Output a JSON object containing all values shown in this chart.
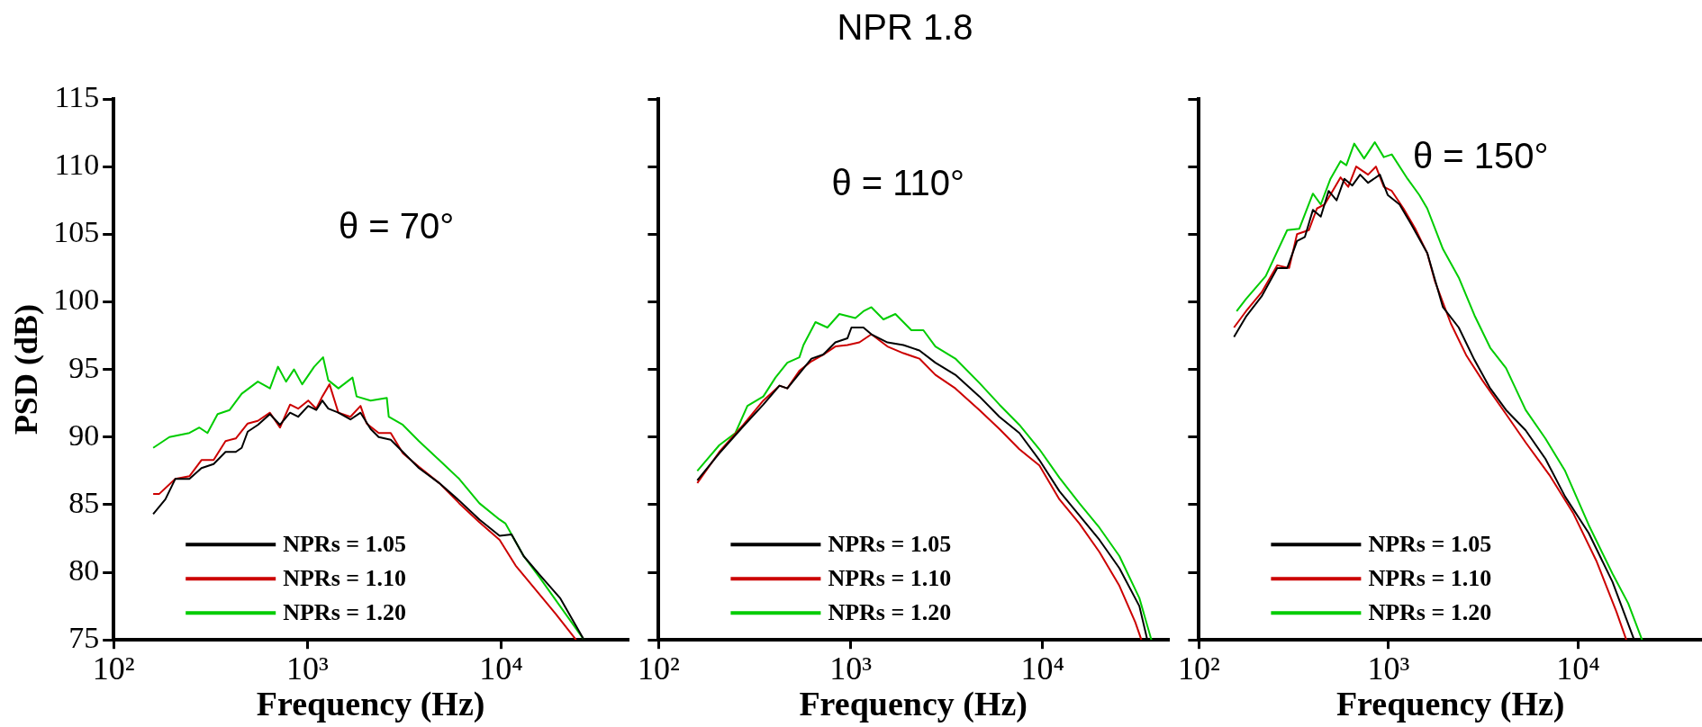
{
  "chart_data": [
    {
      "type": "line",
      "xlabel": "Frequency (Hz)",
      "ylabel": "PSD (dB)",
      "log": "x",
      "marker": "none",
      "legend": "bottom left",
      "grid": false,
      "annotations": [
        "θ = 70°"
      ],
      "xlim": [
        100,
        45000
      ],
      "xticks": [
        {
          "value": 100,
          "label": "10²"
        },
        {
          "value": 1000,
          "label": "10³"
        },
        {
          "value": 10000,
          "label": "10⁴"
        }
      ],
      "ylim": [
        75,
        115
      ],
      "yticks": [
        75,
        80,
        85,
        90,
        95,
        100,
        105,
        110,
        115
      ],
      "series": [
        {
          "name": "NPRs = 1.05",
          "color": "#000000",
          "x": [
            160,
            185,
            208,
            246,
            284,
            328,
            378,
            427,
            458,
            492,
            555,
            641,
            722,
            814,
            896,
            1010,
            1111,
            1194,
            1282,
            1446,
            1668,
            1881,
            2120,
            2333,
            2693,
            3110,
            3765,
            4790,
            6080,
            7730,
            9820,
            11320,
            13070,
            15850,
            20140,
            26800
          ],
          "values": [
            84.3,
            85.4,
            86.9,
            86.9,
            87.7,
            88.0,
            88.9,
            88.9,
            89.2,
            90.4,
            90.9,
            91.7,
            90.9,
            91.8,
            91.5,
            92.3,
            92.0,
            92.7,
            92.1,
            91.8,
            91.3,
            91.8,
            90.6,
            90.0,
            89.8,
            88.9,
            87.7,
            86.6,
            85.3,
            83.9,
            82.7,
            82.8,
            81.2,
            79.8,
            78.1,
            75.0
          ]
        },
        {
          "name": "NPRs = 1.10",
          "color": "#cc0000",
          "x": [
            160,
            172,
            208,
            246,
            284,
            328,
            378,
            427,
            492,
            555,
            641,
            722,
            814,
            896,
            1010,
            1111,
            1194,
            1301,
            1446,
            1668,
            1881,
            2022,
            2333,
            2693,
            3110,
            3765,
            4790,
            6080,
            7730,
            9820,
            11880,
            15100,
            19190,
            24380
          ],
          "values": [
            85.8,
            85.8,
            86.9,
            87.1,
            88.3,
            88.3,
            89.7,
            89.9,
            91.0,
            91.2,
            91.8,
            90.7,
            92.4,
            92.1,
            92.7,
            92.1,
            93.0,
            93.9,
            91.8,
            91.5,
            92.3,
            91.0,
            90.3,
            90.3,
            88.8,
            87.8,
            86.6,
            85.1,
            83.7,
            82.4,
            80.5,
            78.7,
            76.9,
            75.0
          ]
        },
        {
          "name": "NPRs = 1.20",
          "color": "#00cc00",
          "x": [
            160,
            194,
            246,
            277,
            305,
            344,
            397,
            458,
            555,
            641,
            705,
            776,
            853,
            940,
            1084,
            1205,
            1282,
            1446,
            1710,
            1795,
            2120,
            2570,
            2630,
            3110,
            3765,
            4790,
            6080,
            7730,
            9820,
            10540,
            13070,
            15850,
            20140,
            26800
          ],
          "values": [
            89.2,
            90.0,
            90.3,
            90.7,
            90.3,
            91.7,
            92.0,
            93.2,
            94.1,
            93.6,
            95.2,
            94.1,
            95.0,
            93.9,
            95.2,
            95.9,
            94.2,
            93.6,
            94.4,
            93.0,
            92.7,
            92.9,
            91.5,
            90.9,
            89.7,
            88.3,
            86.9,
            85.1,
            83.9,
            83.6,
            81.2,
            79.6,
            77.5,
            75.0
          ]
        }
      ]
    },
    {
      "type": "line",
      "title": "NPR 1.8",
      "xlabel": "Frequency (Hz)",
      "log": "x",
      "marker": "none",
      "legend": "bottom left",
      "grid": false,
      "tick_labels": "x",
      "annotations": [
        "θ = 110°"
      ],
      "xlim": [
        100,
        45000
      ],
      "xticks": [
        {
          "value": 100,
          "label": "10²"
        },
        {
          "value": 1000,
          "label": "10³"
        },
        {
          "value": 10000,
          "label": "10⁴"
        }
      ],
      "ylim": [
        75,
        115
      ],
      "yticks": [
        75,
        80,
        85,
        90,
        95,
        100,
        105,
        110,
        115
      ],
      "series": [
        {
          "name": "NPRs = 1.05",
          "color": "#000000",
          "x": [
            159,
            207,
            276,
            351,
            426,
            468,
            541,
            625,
            721,
            833,
            962,
            1010,
            1166,
            1283,
            1555,
            1884,
            2282,
            2765,
            3513,
            4688,
            5957,
            7568,
            9622,
            12230,
            15550,
            19770,
            25120,
            31920,
            35130
          ],
          "values": [
            86.8,
            88.8,
            90.8,
            92.4,
            93.8,
            93.6,
            94.7,
            95.8,
            96.1,
            97.0,
            97.3,
            98.1,
            98.1,
            97.6,
            97.0,
            96.8,
            96.4,
            95.5,
            94.6,
            93.0,
            91.5,
            90.3,
            88.3,
            86.0,
            84.2,
            82.4,
            80.3,
            77.5,
            75.0
          ]
        },
        {
          "name": "NPRs = 1.10",
          "color": "#cc0000",
          "x": [
            159,
            207,
            276,
            351,
            426,
            468,
            541,
            625,
            721,
            833,
            962,
            1111,
            1283,
            1555,
            1884,
            2282,
            2765,
            3513,
            4688,
            5957,
            7568,
            9622,
            12230,
            15550,
            19770,
            25120,
            30410,
            32710
          ],
          "values": [
            86.6,
            88.9,
            90.9,
            92.7,
            93.8,
            93.6,
            94.9,
            95.6,
            96.1,
            96.7,
            96.8,
            97.0,
            97.6,
            96.7,
            96.2,
            95.8,
            94.6,
            93.6,
            92.0,
            90.6,
            89.1,
            87.9,
            85.4,
            83.6,
            81.5,
            79.0,
            76.3,
            75.0
          ]
        },
        {
          "name": "NPRs = 1.20",
          "color": "#00cc00",
          "x": [
            159,
            207,
            251,
            290,
            351,
            406,
            468,
            541,
            568,
            656,
            757,
            874,
            1059,
            1166,
            1283,
            1482,
            1711,
            2073,
            2394,
            2765,
            3513,
            4688,
            5957,
            7568,
            9622,
            12230,
            15550,
            19770,
            25120,
            31920,
            36890
          ],
          "values": [
            87.5,
            89.4,
            90.3,
            92.3,
            93.0,
            94.4,
            95.5,
            95.9,
            96.8,
            98.5,
            98.1,
            99.1,
            98.8,
            99.3,
            99.6,
            98.7,
            99.1,
            97.9,
            97.9,
            96.7,
            95.8,
            94.0,
            92.4,
            90.9,
            89.1,
            87.0,
            85.1,
            83.3,
            81.2,
            78.1,
            75.0
          ]
        }
      ]
    },
    {
      "type": "line",
      "xlabel": "Frequency (Hz)",
      "log": "x",
      "marker": "none",
      "legend": "bottom left",
      "grid": false,
      "tick_labels": "x",
      "annotations": [
        "θ = 150°"
      ],
      "xlim": [
        100,
        45000
      ],
      "xticks": [
        {
          "value": 100,
          "label": "10²"
        },
        {
          "value": 1000,
          "label": "10³"
        },
        {
          "value": 10000,
          "label": "10⁴"
        }
      ],
      "ylim": [
        75,
        115
      ],
      "yticks": [
        75,
        80,
        85,
        90,
        95,
        100,
        105,
        110,
        115
      ],
      "series": [
        {
          "name": "NPRs = 1.05",
          "color": "#000000",
          "x": [
            153,
            177,
            214,
            259,
            292,
            329,
            362,
            399,
            439,
            483,
            532,
            585,
            644,
            708,
            780,
            900,
            990,
            1143,
            1321,
            1600,
            1936,
            2345,
            2839,
            3437,
            4165,
            5286,
            6714,
            8531,
            11370,
            15170,
            19740
          ],
          "values": [
            97.4,
            98.9,
            100.4,
            102.5,
            102.5,
            104.5,
            104.8,
            106.8,
            106.3,
            108.2,
            107.5,
            109.1,
            108.6,
            109.4,
            108.8,
            109.4,
            107.9,
            107.2,
            105.7,
            103.6,
            99.6,
            98.1,
            95.7,
            93.6,
            92.0,
            90.5,
            88.4,
            85.6,
            82.9,
            79.3,
            75.0
          ]
        },
        {
          "name": "NPRs = 1.10",
          "color": "#cc0000",
          "x": [
            153,
            177,
            214,
            259,
            299,
            329,
            380,
            419,
            460,
            507,
            558,
            613,
            675,
            780,
            858,
            944,
            1040,
            1199,
            1384,
            1600,
            1758,
            2130,
            2580,
            3123,
            4165,
            5286,
            7048,
            9395,
            12520,
            15900,
            17950
          ],
          "values": [
            98.1,
            99.3,
            100.7,
            102.7,
            102.5,
            105.0,
            105.3,
            106.9,
            107.2,
            108.2,
            109.2,
            108.5,
            110.0,
            109.4,
            110.0,
            108.5,
            108.2,
            106.9,
            105.4,
            103.6,
            101.5,
            98.4,
            96.0,
            94.2,
            91.7,
            89.6,
            87.2,
            84.4,
            80.8,
            77.1,
            75.0
          ]
        },
        {
          "name": "NPRs = 1.20",
          "color": "#00cc00",
          "x": [
            158,
            177,
            225,
            292,
            338,
            399,
            439,
            494,
            558,
            599,
            659,
            743,
            846,
            944,
            1040,
            1259,
            1453,
            1600,
            1936,
            2345,
            2839,
            3437,
            4165,
            5286,
            6714,
            8531,
            11370,
            15170,
            18370,
            21730
          ],
          "values": [
            99.3,
            100.2,
            101.9,
            105.3,
            105.4,
            108.0,
            107.2,
            109.1,
            110.4,
            110.1,
            111.7,
            110.6,
            111.8,
            110.7,
            110.9,
            109.1,
            107.9,
            106.9,
            103.9,
            101.8,
            99.0,
            96.6,
            95.1,
            92.0,
            89.9,
            87.5,
            83.5,
            79.9,
            77.7,
            75.0
          ]
        }
      ]
    }
  ]
}
